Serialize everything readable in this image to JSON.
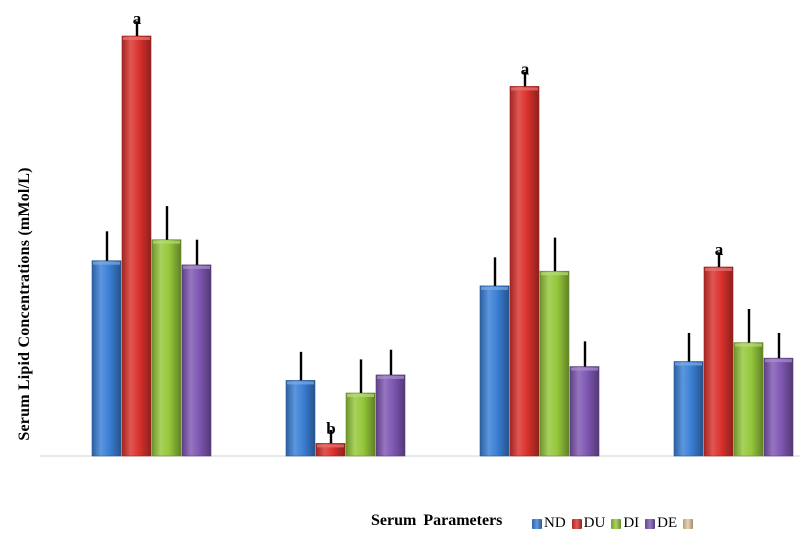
{
  "chart_data": {
    "type": "bar",
    "title": "",
    "xlabel": "Serum Parameters",
    "ylabel": "Serum Lipid Concentrations (mMol/L)",
    "ylim": [
      0,
      10
    ],
    "grid": false,
    "legend_position": "bottom",
    "categories": [
      "",
      "",
      "",
      ""
    ],
    "series": [
      {
        "name": "ND",
        "color": "#3A7FD5",
        "values": [
          4.65,
          1.8,
          4.05,
          2.25
        ],
        "errors": [
          0.7,
          0.68,
          0.68,
          0.68
        ]
      },
      {
        "name": "DU",
        "color": "#D9312C",
        "values": [
          10.0,
          0.3,
          8.8,
          4.5
        ],
        "errors": [
          0.35,
          0.32,
          0.35,
          0.35
        ],
        "annotations": [
          "a",
          "b",
          "a",
          "a"
        ]
      },
      {
        "name": "DI",
        "color": "#94C73A",
        "values": [
          5.15,
          1.5,
          4.4,
          2.7
        ],
        "errors": [
          0.8,
          0.8,
          0.8,
          0.8
        ]
      },
      {
        "name": "DE",
        "color": "#7E57B2",
        "values": [
          4.55,
          1.93,
          2.13,
          2.33
        ],
        "errors": [
          0.6,
          0.6,
          0.6,
          0.6
        ]
      },
      {
        "name": "",
        "color": "#E5C8A0",
        "values": [
          0,
          0,
          0,
          0
        ],
        "errors": [
          0,
          0,
          0,
          0
        ]
      }
    ]
  }
}
